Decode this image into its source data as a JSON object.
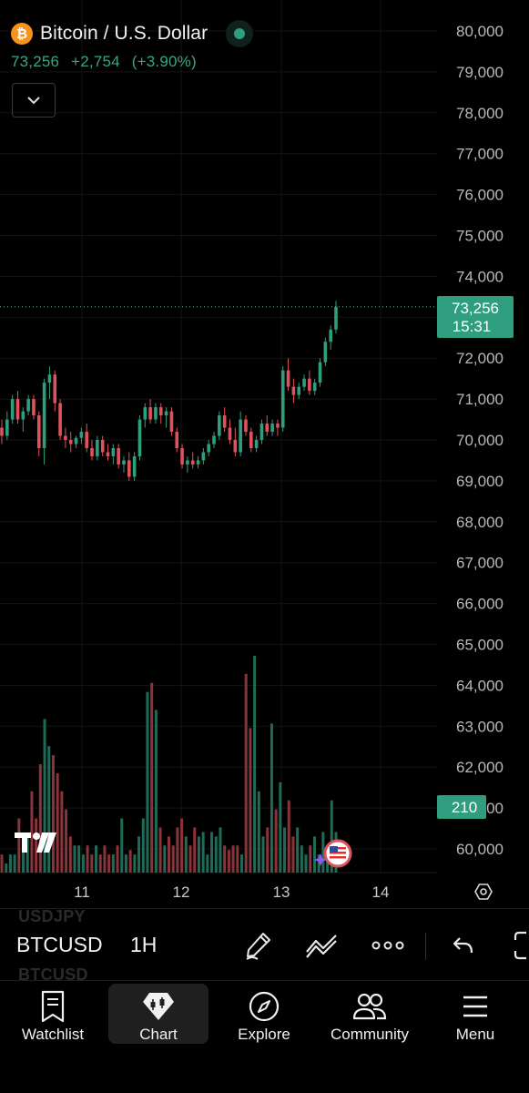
{
  "header": {
    "symbol_icon": "bitcoin-icon",
    "title": "Bitcoin / U.S. Dollar",
    "last_price": "73,256",
    "change": "+2,754",
    "change_pct": "(+3.90%)",
    "up_color": "#2f9e7e",
    "down_color": "#e0525a"
  },
  "chart": {
    "price_axis_labels": [
      "80,000",
      "79,000",
      "78,000",
      "77,000",
      "76,000",
      "75,000",
      "74,000",
      "73,000",
      "72,000",
      "71,000",
      "70,000",
      "69,000",
      "68,000",
      "67,000",
      "66,000",
      "65,000",
      "64,000",
      "63,000",
      "62,000",
      "61,000",
      "60,000"
    ],
    "time_axis_labels": [
      "11",
      "12",
      "13",
      "14"
    ],
    "price_tag": {
      "price": "73,256",
      "countdown": "15:31"
    },
    "volume_tag": "210"
  },
  "chart_data": {
    "type": "candlestick",
    "title": "",
    "interval": "1H",
    "ylim": [
      59500,
      80500
    ],
    "x_ticks": [
      "11",
      "12",
      "13",
      "14"
    ],
    "last_close": 73256,
    "ohlc_approx": [
      [
        70300,
        70500,
        69900,
        70100
      ],
      [
        70100,
        70700,
        70000,
        70500
      ],
      [
        70500,
        71100,
        70400,
        71000
      ],
      [
        71000,
        71200,
        70400,
        70500
      ],
      [
        70500,
        70800,
        70200,
        70700
      ],
      [
        70700,
        71100,
        70600,
        71000
      ],
      [
        71000,
        71100,
        70500,
        70600
      ],
      [
        70600,
        70700,
        69600,
        69800
      ],
      [
        69800,
        71500,
        69400,
        71400
      ],
      [
        71400,
        71800,
        71000,
        71600
      ],
      [
        71600,
        71700,
        70700,
        70900
      ],
      [
        70900,
        71000,
        70000,
        70100
      ],
      [
        70100,
        70300,
        69800,
        70000
      ],
      [
        70000,
        70200,
        69700,
        69900
      ],
      [
        69900,
        70100,
        69800,
        70050
      ],
      [
        70050,
        70300,
        69900,
        70200
      ],
      [
        70200,
        70400,
        69700,
        69800
      ],
      [
        69800,
        70000,
        69500,
        69600
      ],
      [
        69600,
        70100,
        69500,
        70000
      ],
      [
        70000,
        70100,
        69600,
        69700
      ],
      [
        69700,
        69900,
        69500,
        69600
      ],
      [
        69600,
        69900,
        69400,
        69800
      ],
      [
        69800,
        69900,
        69300,
        69400
      ],
      [
        69400,
        69600,
        69200,
        69500
      ],
      [
        69500,
        69700,
        69000,
        69100
      ],
      [
        69100,
        69700,
        69000,
        69600
      ],
      [
        69600,
        70600,
        69500,
        70500
      ],
      [
        70500,
        70900,
        70300,
        70800
      ],
      [
        70800,
        71000,
        70400,
        70500
      ],
      [
        70500,
        70900,
        70400,
        70800
      ],
      [
        70800,
        70900,
        70400,
        70600
      ],
      [
        70600,
        70800,
        70300,
        70700
      ],
      [
        70700,
        70800,
        70100,
        70200
      ],
      [
        70200,
        70300,
        69700,
        69800
      ],
      [
        69800,
        69900,
        69300,
        69400
      ],
      [
        69400,
        69600,
        69200,
        69500
      ],
      [
        69500,
        69700,
        69300,
        69400
      ],
      [
        69400,
        69600,
        69300,
        69500
      ],
      [
        69500,
        69800,
        69400,
        69700
      ],
      [
        69700,
        70000,
        69600,
        69900
      ],
      [
        69900,
        70200,
        69800,
        70100
      ],
      [
        70100,
        70700,
        70000,
        70600
      ],
      [
        70600,
        70800,
        70200,
        70300
      ],
      [
        70300,
        70500,
        69900,
        70000
      ],
      [
        70000,
        70300,
        69600,
        69700
      ],
      [
        69700,
        70700,
        69600,
        70500
      ],
      [
        70500,
        70600,
        70100,
        70200
      ],
      [
        70200,
        70300,
        69700,
        69800
      ],
      [
        69800,
        70100,
        69700,
        70000
      ],
      [
        70000,
        70500,
        69900,
        70400
      ],
      [
        70400,
        70600,
        70100,
        70200
      ],
      [
        70200,
        70500,
        70100,
        70400
      ],
      [
        70400,
        70500,
        70100,
        70300
      ],
      [
        70300,
        71800,
        70200,
        71700
      ],
      [
        71700,
        72000,
        71200,
        71300
      ],
      [
        71300,
        71500,
        70900,
        71100
      ],
      [
        71100,
        71400,
        71000,
        71300
      ],
      [
        71300,
        71600,
        71200,
        71500
      ],
      [
        71500,
        71700,
        71100,
        71200
      ],
      [
        71200,
        71500,
        71100,
        71400
      ],
      [
        71400,
        72000,
        71300,
        71900
      ],
      [
        71900,
        72500,
        71800,
        72400
      ],
      [
        72400,
        72800,
        72200,
        72700
      ],
      [
        72700,
        73400,
        72600,
        73256
      ]
    ]
  },
  "volume_data": {
    "values_approx": [
      20,
      10,
      20,
      20,
      60,
      30,
      40,
      90,
      60,
      120,
      170,
      140,
      130,
      110,
      90,
      70,
      40,
      30,
      30,
      20,
      30,
      20,
      30,
      20,
      30,
      20,
      20,
      30,
      60,
      20,
      25,
      20,
      40,
      60,
      200,
      210,
      180,
      50,
      30,
      40,
      30,
      50,
      60,
      40,
      30,
      50,
      40,
      45,
      20,
      45,
      40,
      50,
      30,
      25,
      30,
      30,
      20,
      220,
      160,
      240,
      90,
      40,
      50,
      165,
      70,
      100,
      50,
      80,
      40,
      50,
      30,
      20,
      30,
      40,
      20,
      45,
      30,
      80,
      45
    ]
  },
  "toolbar": {
    "symbol": "BTCUSD",
    "interval": "1H",
    "ghost_symbol_top": "USDJPY",
    "ghost_symbol_bottom": "BTCUSD"
  },
  "nav": {
    "items": [
      {
        "label": "Watchlist",
        "icon": "bookmark-list-icon"
      },
      {
        "label": "Chart",
        "icon": "chart-gem-icon"
      },
      {
        "label": "Explore",
        "icon": "compass-icon"
      },
      {
        "label": "Community",
        "icon": "people-icon"
      },
      {
        "label": "Menu",
        "icon": "hamburger-icon"
      }
    ]
  }
}
